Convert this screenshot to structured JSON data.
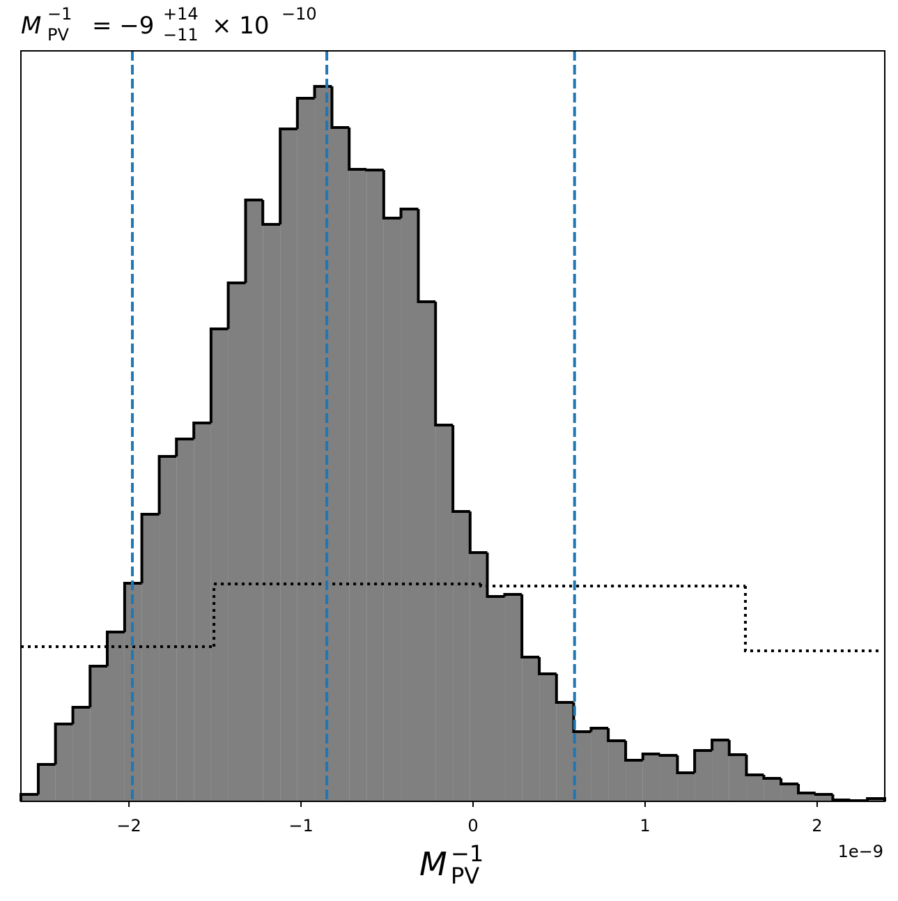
{
  "chart_data": {
    "type": "histogram",
    "title": {
      "symbol": "M",
      "sup": "−1",
      "sub": "PV",
      "eq": "= −9",
      "upper": "+14",
      "lower": "−11",
      "times": "× 10",
      "exp": "−10"
    },
    "xlabel": {
      "symbol": "M",
      "sup": "−1",
      "sub": "PV"
    },
    "x_offset_label": "1e−9",
    "bins": [
      -2.628,
      -2.527,
      -2.427,
      -2.326,
      -2.226,
      -2.126,
      -2.025,
      -1.925,
      -1.824,
      -1.724,
      -1.623,
      -1.523,
      -1.423,
      -1.322,
      -1.222,
      -1.121,
      -1.021,
      -0.921,
      -0.82,
      -0.72,
      -0.619,
      -0.519,
      -0.419,
      -0.318,
      -0.218,
      -0.117,
      -0.017,
      0.083,
      0.184,
      0.284,
      0.385,
      0.485,
      0.585,
      0.686,
      0.786,
      0.887,
      0.987,
      1.087,
      1.188,
      1.288,
      1.389,
      1.489,
      1.589,
      1.69,
      1.79,
      1.891,
      1.991,
      2.091,
      2.192,
      2.292,
      2.393
    ],
    "values": [
      10,
      53,
      111,
      135,
      194,
      243,
      313,
      412,
      495,
      520,
      543,
      678,
      744,
      863,
      828,
      965,
      1009,
      1026,
      967,
      907,
      906,
      837,
      850,
      717,
      540,
      416,
      357,
      294,
      297,
      207,
      183,
      142,
      100,
      105,
      87,
      59,
      68,
      66,
      41,
      73,
      88,
      67,
      38,
      33,
      25,
      12,
      10,
      2,
      1,
      4
    ],
    "color": "#808080",
    "edge_color": "#000000",
    "prior": {
      "bins": [
        -2.628,
        -1.506,
        0.045,
        1.583,
        2.372
      ],
      "values": [
        222,
        312,
        309,
        216
      ],
      "color": "#000000"
    },
    "quantiles": {
      "values": [
        -1.98,
        -0.85,
        0.59
      ],
      "color": "#1f77b4"
    },
    "xlim": [
      -2.628,
      2.393
    ],
    "ylim": [
      0,
      1077
    ],
    "xticks": [
      {
        "value": -2,
        "label": "−2"
      },
      {
        "value": -1,
        "label": "−1"
      },
      0,
      1,
      2
    ]
  }
}
